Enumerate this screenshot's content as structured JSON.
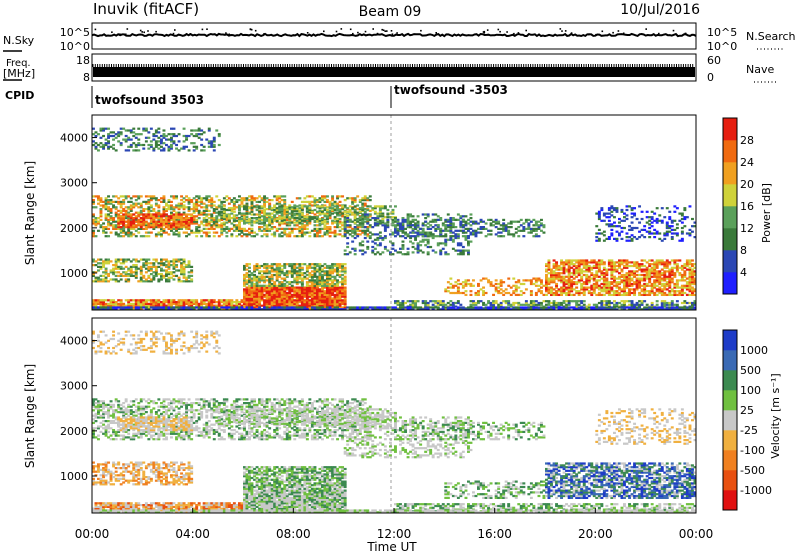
{
  "header": {
    "station": "Inuvik (fitACF)",
    "beam": "Beam 09",
    "date": "10/Jul/2016"
  },
  "noise_panel": {
    "left_label": "N.Sky",
    "right_label": "N.Search",
    "left_ticks": [
      "10^5",
      "10^0"
    ],
    "right_ticks": [
      "10^5",
      "10^0"
    ]
  },
  "freq_panel": {
    "left_label_1": "Freq.",
    "left_label_2": "[MHz]",
    "right_label": "Nave",
    "left_ticks": [
      "18",
      "8"
    ],
    "right_ticks": [
      "60",
      "0"
    ]
  },
  "cpid_panel": {
    "label": "CPID",
    "segments": [
      {
        "start_hour": 0,
        "label": "twofsound 3503"
      },
      {
        "start_hour": 12,
        "label": "twofsound -3503"
      }
    ]
  },
  "chart_data": [
    {
      "type": "heatmap",
      "parameter": "Power",
      "ylabel": "Slant Range [km]",
      "ylim": [
        180,
        4500
      ],
      "yticks": [
        "1000",
        "2000",
        "3000",
        "4000"
      ],
      "colorbar_label": "Power [dB]",
      "colorbar_ticks": [
        "4",
        "8",
        "12",
        "16",
        "20",
        "24",
        "28"
      ],
      "colors": [
        "#1f1fff",
        "#2b47b4",
        "#3a7a3a",
        "#5aa05a",
        "#cfd23a",
        "#f0a020",
        "#f06a10",
        "#e61e10"
      ]
    },
    {
      "type": "heatmap",
      "parameter": "Velocity",
      "ylabel": "Slant Range [km]",
      "xlabel": "Time UT",
      "ylim": [
        180,
        4500
      ],
      "yticks": [
        "1000",
        "2000",
        "3000",
        "4000"
      ],
      "xticks": [
        "00:00",
        "04:00",
        "08:00",
        "12:00",
        "16:00",
        "20:00",
        "00:00"
      ],
      "colorbar_label": "Velocity [m s⁻¹]",
      "colorbar_ticks": [
        "1000",
        "500",
        "100",
        "25",
        "-25",
        "-100",
        "-500",
        "-1000"
      ],
      "colors": [
        "#1e3cc8",
        "#3a6ab4",
        "#3c8a50",
        "#70c040",
        "#c8c8c8",
        "#f0b040",
        "#f08020",
        "#e85010",
        "#e01010"
      ]
    }
  ]
}
